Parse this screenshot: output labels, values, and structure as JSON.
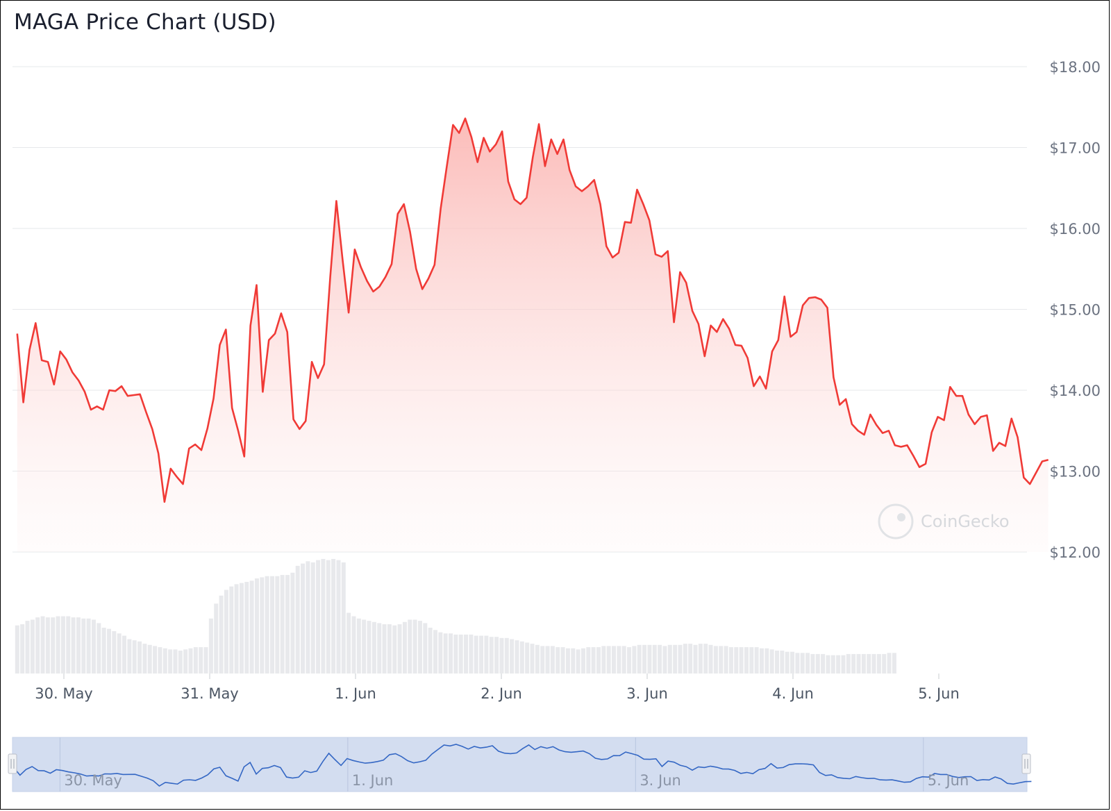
{
  "title": "MAGA Price Chart (USD)",
  "watermark": "CoinGecko",
  "icons": {
    "watermark_logo": "gecko-logo-icon",
    "navigator_handles": "drag-handle-icon"
  },
  "colors": {
    "line": "#f03a36",
    "fill_top": "#fbb8b5",
    "volume": "#e8e9ec",
    "grid": "#e6e8eb",
    "navigator_bg": "#d3ddf0",
    "navigator_line": "#3467c4"
  },
  "chart_data": {
    "type": "area",
    "title": "MAGA Price Chart (USD)",
    "xlabel": "",
    "ylabel": "",
    "ylim": [
      12,
      18
    ],
    "grid": true,
    "y_ticks": [
      "$12.00",
      "$13.00",
      "$14.00",
      "$15.00",
      "$16.00",
      "$17.00",
      "$18.00"
    ],
    "x_ticks": [
      "30. May",
      "31. May",
      "1. Jun",
      "2. Jun",
      "3. Jun",
      "4. Jun",
      "5. Jun"
    ],
    "x_tick_days": [
      0,
      1,
      2,
      3,
      4,
      5,
      6
    ],
    "x_range_days": [
      -0.33,
      6.72
    ],
    "navigator_ticks": [
      "30. May",
      "1. Jun",
      "3. Jun",
      "5. Jun"
    ],
    "navigator_tick_days": [
      0,
      2,
      4,
      6
    ],
    "price_days_start": -0.32,
    "price_days_step": 0.04209,
    "price": [
      14.7,
      13.85,
      14.5,
      14.83,
      14.37,
      14.35,
      14.07,
      14.48,
      14.38,
      14.22,
      14.12,
      13.98,
      13.76,
      13.8,
      13.76,
      14.0,
      13.99,
      14.05,
      13.93,
      13.94,
      13.95,
      13.73,
      13.52,
      13.22,
      12.62,
      13.03,
      12.93,
      12.84,
      13.28,
      13.33,
      13.26,
      13.53,
      13.9,
      14.56,
      14.75,
      13.78,
      13.5,
      13.18,
      14.8,
      15.3,
      13.98,
      14.62,
      14.7,
      14.95,
      14.72,
      13.64,
      13.52,
      13.62,
      14.35,
      14.15,
      14.32,
      15.4,
      16.34,
      15.62,
      14.96,
      15.74,
      15.52,
      15.35,
      15.22,
      15.28,
      15.4,
      15.56,
      16.18,
      16.3,
      15.96,
      15.5,
      15.25,
      15.38,
      15.55,
      16.25,
      16.77,
      17.28,
      17.18,
      17.36,
      17.13,
      16.82,
      17.12,
      16.95,
      17.04,
      17.2,
      16.58,
      16.36,
      16.3,
      16.38,
      16.88,
      17.29,
      16.77,
      17.1,
      16.92,
      17.1,
      16.72,
      16.52,
      16.46,
      16.52,
      16.6,
      16.3,
      15.78,
      15.64,
      15.7,
      16.08,
      16.07,
      16.48,
      16.3,
      16.1,
      15.68,
      15.65,
      15.72,
      14.84,
      15.46,
      15.33,
      14.98,
      14.82,
      14.42,
      14.8,
      14.72,
      14.88,
      14.76,
      14.56,
      14.55,
      14.4,
      14.05,
      14.17,
      14.02,
      14.48,
      14.62,
      15.16,
      14.66,
      14.72,
      15.05,
      15.14,
      15.15,
      15.12,
      15.02,
      14.16,
      13.82,
      13.89,
      13.58,
      13.5,
      13.45,
      13.7,
      13.57,
      13.47,
      13.5,
      13.32,
      13.3,
      13.32,
      13.19,
      13.05,
      13.09,
      13.48,
      13.67,
      13.63,
      14.04,
      13.93,
      13.93,
      13.7,
      13.58,
      13.67,
      13.69,
      13.25,
      13.35,
      13.31,
      13.65,
      13.42,
      12.92,
      12.84,
      12.98,
      13.12,
      13.14
    ],
    "volume_days_start": -0.32,
    "volume_days_step": 0.03497,
    "volume": [
      0.42,
      0.43,
      0.46,
      0.47,
      0.49,
      0.5,
      0.49,
      0.49,
      0.5,
      0.5,
      0.5,
      0.49,
      0.49,
      0.48,
      0.48,
      0.47,
      0.44,
      0.4,
      0.39,
      0.37,
      0.35,
      0.33,
      0.3,
      0.29,
      0.28,
      0.26,
      0.25,
      0.24,
      0.23,
      0.22,
      0.21,
      0.21,
      0.2,
      0.21,
      0.22,
      0.23,
      0.23,
      0.23,
      0.48,
      0.61,
      0.68,
      0.73,
      0.76,
      0.78,
      0.79,
      0.8,
      0.81,
      0.83,
      0.84,
      0.85,
      0.85,
      0.85,
      0.86,
      0.86,
      0.88,
      0.94,
      0.96,
      0.98,
      0.97,
      0.99,
      1.0,
      0.99,
      1.0,
      0.99,
      0.97,
      0.53,
      0.5,
      0.48,
      0.47,
      0.46,
      0.45,
      0.44,
      0.43,
      0.43,
      0.42,
      0.43,
      0.45,
      0.47,
      0.47,
      0.46,
      0.44,
      0.4,
      0.38,
      0.36,
      0.35,
      0.35,
      0.34,
      0.34,
      0.34,
      0.34,
      0.33,
      0.33,
      0.33,
      0.32,
      0.32,
      0.31,
      0.31,
      0.3,
      0.29,
      0.28,
      0.27,
      0.26,
      0.25,
      0.24,
      0.24,
      0.24,
      0.23,
      0.23,
      0.22,
      0.22,
      0.21,
      0.22,
      0.23,
      0.23,
      0.23,
      0.24,
      0.24,
      0.24,
      0.24,
      0.24,
      0.23,
      0.24,
      0.25,
      0.25,
      0.25,
      0.25,
      0.25,
      0.24,
      0.25,
      0.25,
      0.25,
      0.26,
      0.26,
      0.25,
      0.26,
      0.26,
      0.25,
      0.24,
      0.24,
      0.24,
      0.23,
      0.23,
      0.23,
      0.23,
      0.23,
      0.23,
      0.22,
      0.22,
      0.21,
      0.2,
      0.2,
      0.19,
      0.19,
      0.18,
      0.18,
      0.18,
      0.17,
      0.17,
      0.17,
      0.16,
      0.16,
      0.16,
      0.16,
      0.17,
      0.17,
      0.17,
      0.17,
      0.17,
      0.17,
      0.17,
      0.17,
      0.18,
      0.18
    ]
  }
}
